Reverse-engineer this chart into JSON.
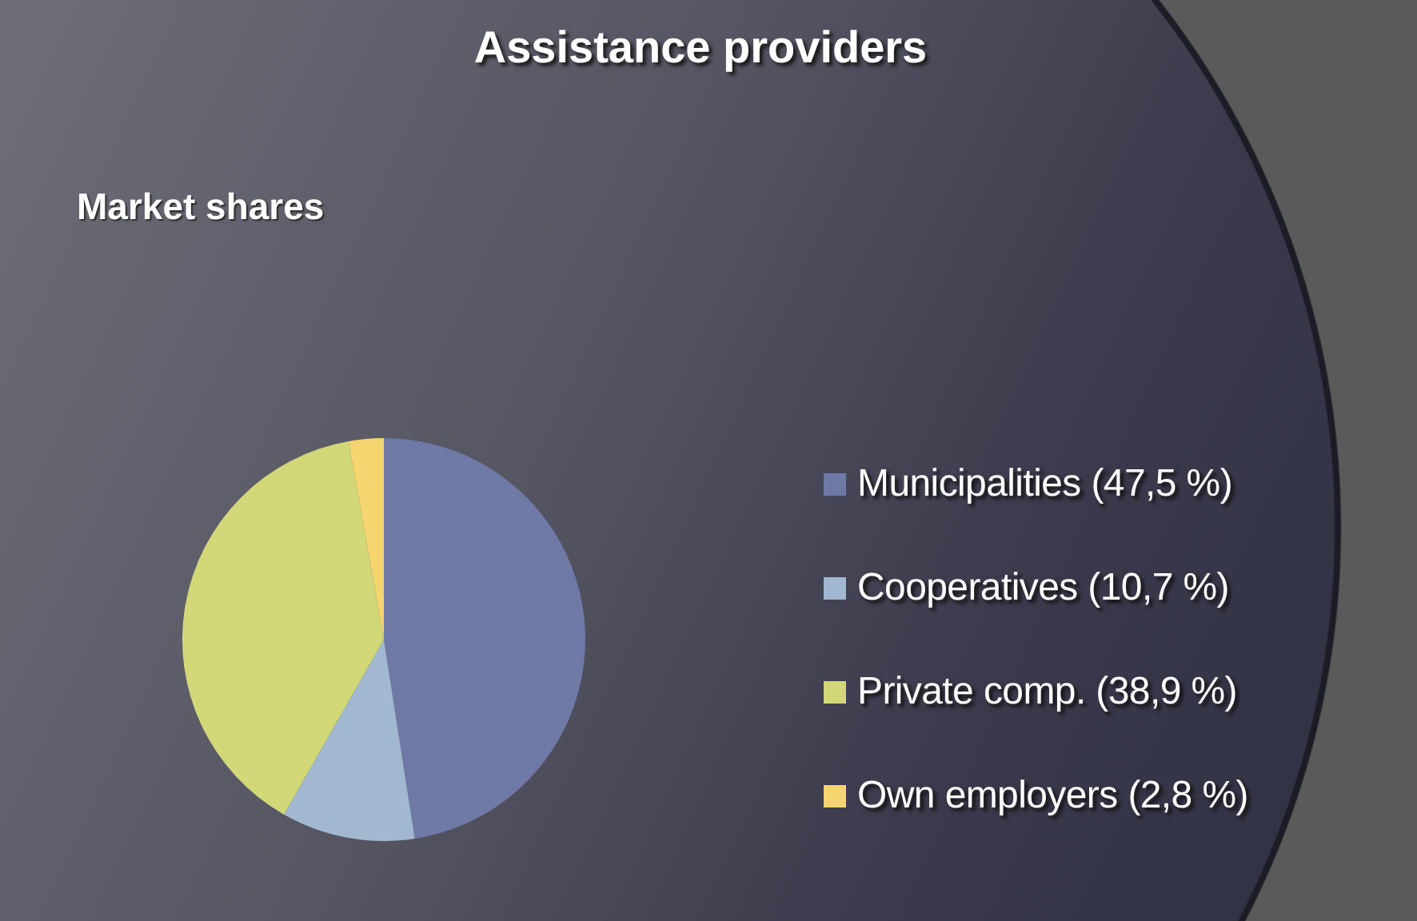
{
  "chart_data": {
    "type": "pie",
    "title": "Assistance providers",
    "subtitle": "Market shares",
    "categories": [
      "Municipalities (47,5 %)",
      "Cooperatives (10,7 %)",
      "Private comp. (38,9 %)",
      "Own employers (2,8 %)"
    ],
    "values": [
      47.5,
      10.7,
      38.9,
      2.8
    ],
    "colors": [
      "#6e79a6",
      "#a2b8d0",
      "#d2d878",
      "#f5d570"
    ],
    "legend": "right"
  }
}
